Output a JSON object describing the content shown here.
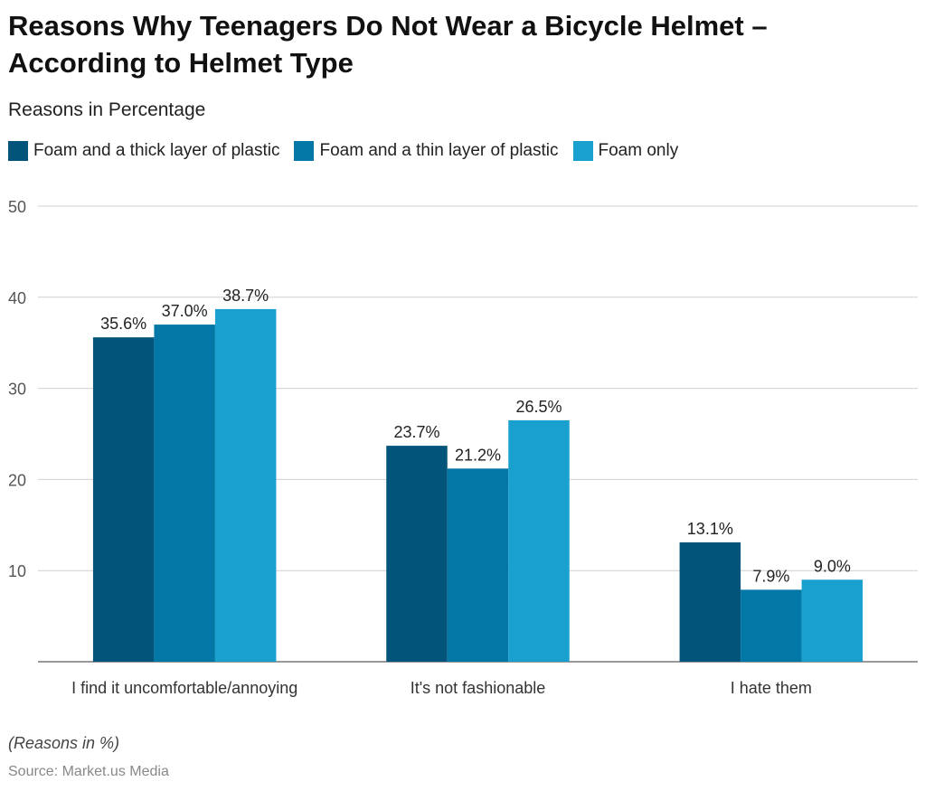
{
  "title": "Reasons Why Teenagers Do Not Wear a Bicycle Helmet – According to Helmet Type",
  "subtitle": "Reasons in Percentage",
  "note": "(Reasons in %)",
  "source": "Source: Market.us Media",
  "chart_data": {
    "type": "bar",
    "categories": [
      "I find it uncomfortable/annoying",
      "It's not fashionable",
      "I hate them"
    ],
    "series": [
      {
        "name": "Foam and a thick layer of plastic",
        "color": "#02547a",
        "values": [
          35.6,
          23.7,
          13.1
        ],
        "labels": [
          "35.6%",
          "23.7%",
          "13.1%"
        ]
      },
      {
        "name": "Foam and a thin layer of plastic",
        "color": "#0378a6",
        "values": [
          37.0,
          21.2,
          7.9
        ],
        "labels": [
          "37.0%",
          "21.2%",
          "7.9%"
        ]
      },
      {
        "name": "Foam only",
        "color": "#1aa0cf",
        "values": [
          38.7,
          26.5,
          9.0
        ],
        "labels": [
          "38.7%",
          "26.5%",
          "9.0%"
        ]
      }
    ],
    "ylim": [
      0,
      50
    ],
    "yticks": [
      10,
      20,
      30,
      40,
      50
    ],
    "grid": true,
    "legend": "top-left"
  }
}
